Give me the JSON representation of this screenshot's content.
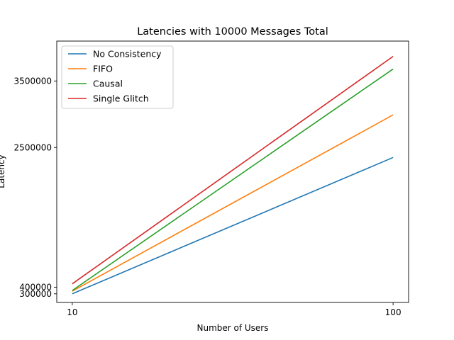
{
  "chart_data": {
    "type": "line",
    "title": "Latencies with 10000 Messages Total",
    "xlabel": "Number of Users",
    "ylabel": "Latency",
    "x": [
      10,
      100
    ],
    "x_ticks": [
      10,
      100
    ],
    "x_tick_labels": [
      "10",
      "100"
    ],
    "xlim": [
      5.65,
      104.35
    ],
    "y_ticks": [
      300000,
      400000,
      2500000,
      3500000
    ],
    "y_tick_labels": [
      "300000",
      "400000",
      "2500000",
      "3500000"
    ],
    "ylim": [
      170000,
      4100000
    ],
    "grid": false,
    "legend_position": "top-left",
    "series": [
      {
        "name": "No Consistency",
        "color": "#1f77b4",
        "values": [
          300000,
          2350000
        ]
      },
      {
        "name": "FIFO",
        "color": "#ff7f0e",
        "values": [
          340000,
          2990000
        ]
      },
      {
        "name": "Causal",
        "color": "#2ca02c",
        "values": [
          350000,
          3680000
        ]
      },
      {
        "name": "Single Glitch",
        "color": "#d62728",
        "values": [
          450000,
          3870000
        ]
      }
    ]
  }
}
